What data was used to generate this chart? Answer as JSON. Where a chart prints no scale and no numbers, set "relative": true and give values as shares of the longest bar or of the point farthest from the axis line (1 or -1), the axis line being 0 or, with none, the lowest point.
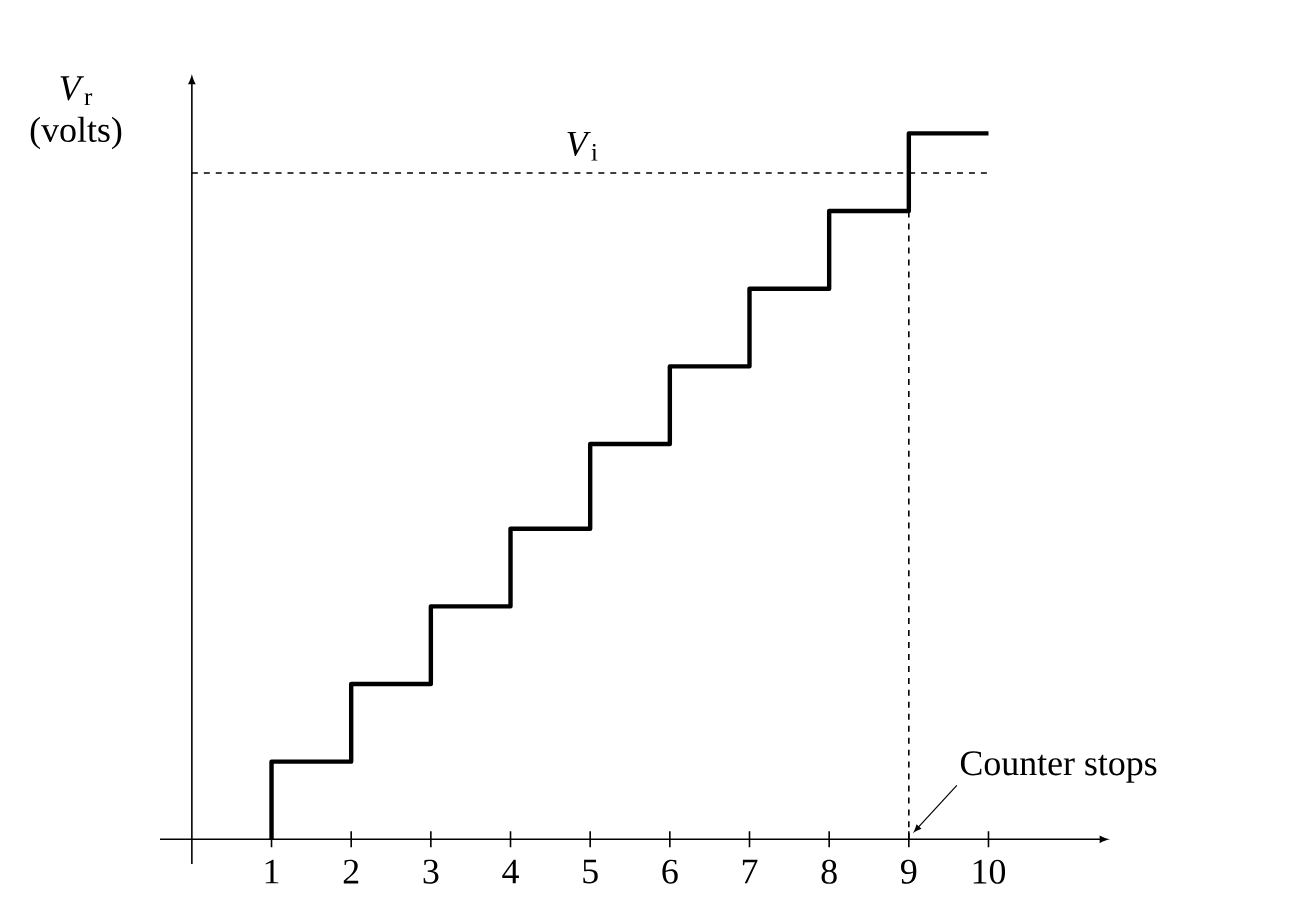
{
  "chart_data": {
    "type": "step",
    "relative": true,
    "ylabel": "*V*$_{r}$ (volts)",
    "color": "#000000",
    "line_style": "solid",
    "tick_labels": "x",
    "x": [
      1,
      1,
      2,
      3,
      4,
      5,
      6,
      7,
      8,
      9,
      10
    ],
    "values": [
      0,
      0.11,
      0.22,
      0.33,
      0.44,
      0.56,
      0.67,
      0.78,
      0.89,
      1,
      1
    ],
    "xlim": [
      -0.4,
      11.4
    ],
    "xticks": [
      1,
      2,
      3,
      4,
      5,
      6,
      7,
      8,
      9,
      10
    ],
    "ref_lines": [
      {
        "axis": "y",
        "value": 0.944,
        "label": "*V*$_{i}$",
        "line_style": "dashed"
      },
      {
        "axis": "x",
        "value": 9,
        "line_style": "dashed"
      }
    ],
    "annotations": [
      {
        "text": "Counter stops",
        "x": 9,
        "y": 0
      }
    ]
  }
}
